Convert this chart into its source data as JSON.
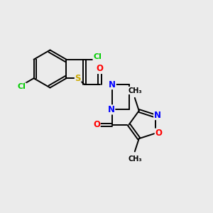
{
  "background_color": "#ebebeb",
  "bond_color": "#000000",
  "atom_colors": {
    "Cl": "#00cc00",
    "S": "#ccaa00",
    "N": "#0000ff",
    "O": "#ff0000",
    "C": "#000000"
  },
  "figsize": [
    3.0,
    3.0
  ],
  "dpi": 100,
  "xlim": [
    0,
    10
  ],
  "ylim": [
    0,
    10
  ]
}
